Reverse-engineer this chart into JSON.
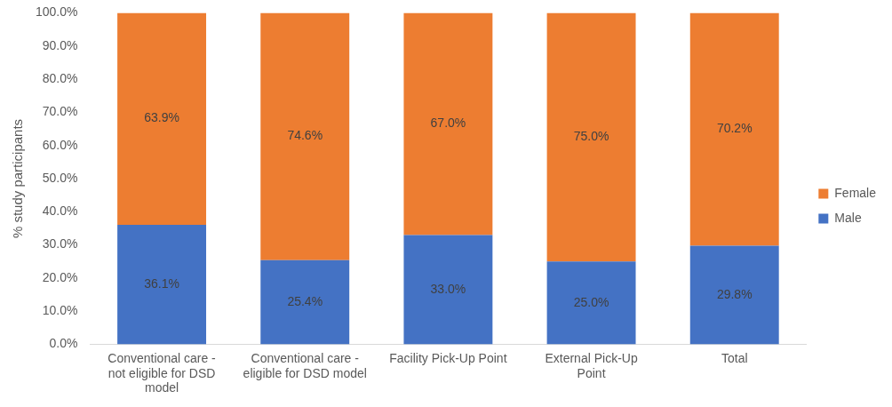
{
  "chart_data": {
    "type": "bar",
    "stacked": true,
    "ylabel": "% study participants",
    "categories": [
      "Conventional care - not eligible for DSD model",
      "Conventional care - eligible for DSD model",
      "Facility Pick-Up Point",
      "External Pick-Up Point",
      "Total"
    ],
    "series": [
      {
        "name": "Male",
        "color": "#4472c4",
        "values": [
          36.1,
          25.4,
          33.0,
          25.0,
          29.8
        ],
        "value_labels": [
          "36.1%",
          "25.4%",
          "33.0%",
          "25.0%",
          "29.8%"
        ]
      },
      {
        "name": "Female",
        "color": "#ed7d31",
        "values": [
          63.9,
          74.6,
          67.0,
          75.0,
          70.2
        ],
        "value_labels": [
          "63.9%",
          "74.6%",
          "67.0%",
          "75.0%",
          "70.2%"
        ]
      }
    ],
    "ylim": [
      0,
      100
    ],
    "yticks": [
      {
        "value": 0,
        "label": "0.0%"
      },
      {
        "value": 10,
        "label": "10.0%"
      },
      {
        "value": 20,
        "label": "20.0%"
      },
      {
        "value": 30,
        "label": "30.0%"
      },
      {
        "value": 40,
        "label": "40.0%"
      },
      {
        "value": 50,
        "label": "50.0%"
      },
      {
        "value": 60,
        "label": "60.0%"
      },
      {
        "value": 70,
        "label": "70.0%"
      },
      {
        "value": 80,
        "label": "80.0%"
      },
      {
        "value": 90,
        "label": "90.0%"
      },
      {
        "value": 100,
        "label": "100.0%"
      }
    ],
    "legend": "right",
    "grid": false
  }
}
